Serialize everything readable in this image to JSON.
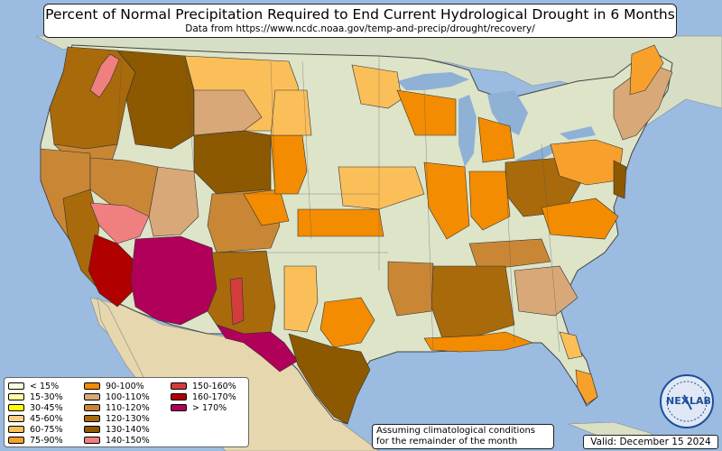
{
  "title": "Percent of Normal Precipitation Required to End Current Hydrological Drought in 6 Months",
  "subtitle": "Data from https://www.ncdc.noaa.gov/temp-and-precip/drought/recovery/",
  "legend": [
    {
      "label": "< 15%",
      "color": "#ffffe0"
    },
    {
      "label": "15-30%",
      "color": "#ffffa0"
    },
    {
      "label": "30-45%",
      "color": "#ffff00"
    },
    {
      "label": "45-60%",
      "color": "#fdd08a"
    },
    {
      "label": "60-75%",
      "color": "#fbbf5a"
    },
    {
      "label": "75-90%",
      "color": "#f7a02c"
    },
    {
      "label": "90-100%",
      "color": "#f38c00"
    },
    {
      "label": "100-110%",
      "color": "#d8a878"
    },
    {
      "label": "110-120%",
      "color": "#c98735"
    },
    {
      "label": "120-130%",
      "color": "#a86a0a"
    },
    {
      "label": "130-140%",
      "color": "#8c5800"
    },
    {
      "label": "140-150%",
      "color": "#f08080"
    },
    {
      "label": "150-160%",
      "color": "#d43c3c"
    },
    {
      "label": "160-170%",
      "color": "#b00000"
    },
    {
      "label": "> 170%",
      "color": "#b0005a"
    }
  ],
  "note_line1": "Assuming climatological conditions",
  "note_line2": "for the remainder of the month",
  "valid": "Valid: December 15 2024",
  "logo": {
    "text_left": "NEX",
    "text_right": "LAB"
  },
  "colors": {
    "ocean": "#9bbbe0",
    "land": "#d9e0c4",
    "land_north": "#dce6d0",
    "land_arid": "#e8d8b0",
    "great_lakes": "#8fb1d6"
  }
}
